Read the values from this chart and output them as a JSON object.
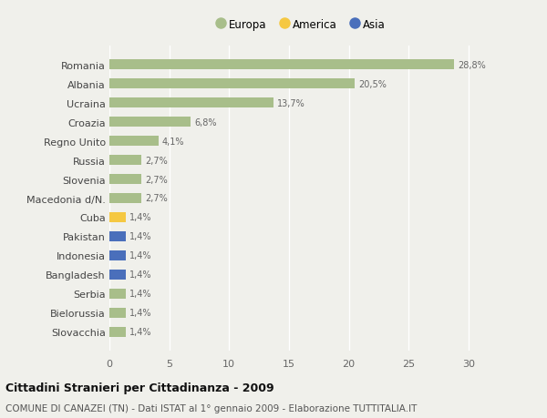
{
  "categories": [
    "Romania",
    "Albania",
    "Ucraina",
    "Croazia",
    "Regno Unito",
    "Russia",
    "Slovenia",
    "Macedonia d/N.",
    "Cuba",
    "Pakistan",
    "Indonesia",
    "Bangladesh",
    "Serbia",
    "Bielorussia",
    "Slovacchia"
  ],
  "values": [
    28.8,
    20.5,
    13.7,
    6.8,
    4.1,
    2.7,
    2.7,
    2.7,
    1.4,
    1.4,
    1.4,
    1.4,
    1.4,
    1.4,
    1.4
  ],
  "labels": [
    "28,8%",
    "20,5%",
    "13,7%",
    "6,8%",
    "4,1%",
    "2,7%",
    "2,7%",
    "2,7%",
    "1,4%",
    "1,4%",
    "1,4%",
    "1,4%",
    "1,4%",
    "1,4%",
    "1,4%"
  ],
  "continent": [
    "Europa",
    "Europa",
    "Europa",
    "Europa",
    "Europa",
    "Europa",
    "Europa",
    "Europa",
    "America",
    "Asia",
    "Asia",
    "Asia",
    "Europa",
    "Europa",
    "Europa"
  ],
  "colors": {
    "America": "#f5c842",
    "Asia": "#4a6fbb"
  },
  "legend_items": [
    {
      "label": "Europa",
      "color": "#a8be8a"
    },
    {
      "label": "America",
      "color": "#f5c842"
    },
    {
      "label": "Asia",
      "color": "#4a6fbb"
    }
  ],
  "title": "Cittadini Stranieri per Cittadinanza - 2009",
  "subtitle": "COMUNE DI CANAZEI (TN) - Dati ISTAT al 1° gennaio 2009 - Elaborazione TUTTITALIA.IT",
  "xlim": [
    0,
    32
  ],
  "xticks": [
    0,
    5,
    10,
    15,
    20,
    25,
    30
  ],
  "background_color": "#f0f0eb",
  "grid_color": "#ffffff",
  "bar_height": 0.55,
  "colors_map": {
    "Europa": "#a8be8a",
    "America": "#f5c842",
    "Asia": "#4a6fbb"
  }
}
